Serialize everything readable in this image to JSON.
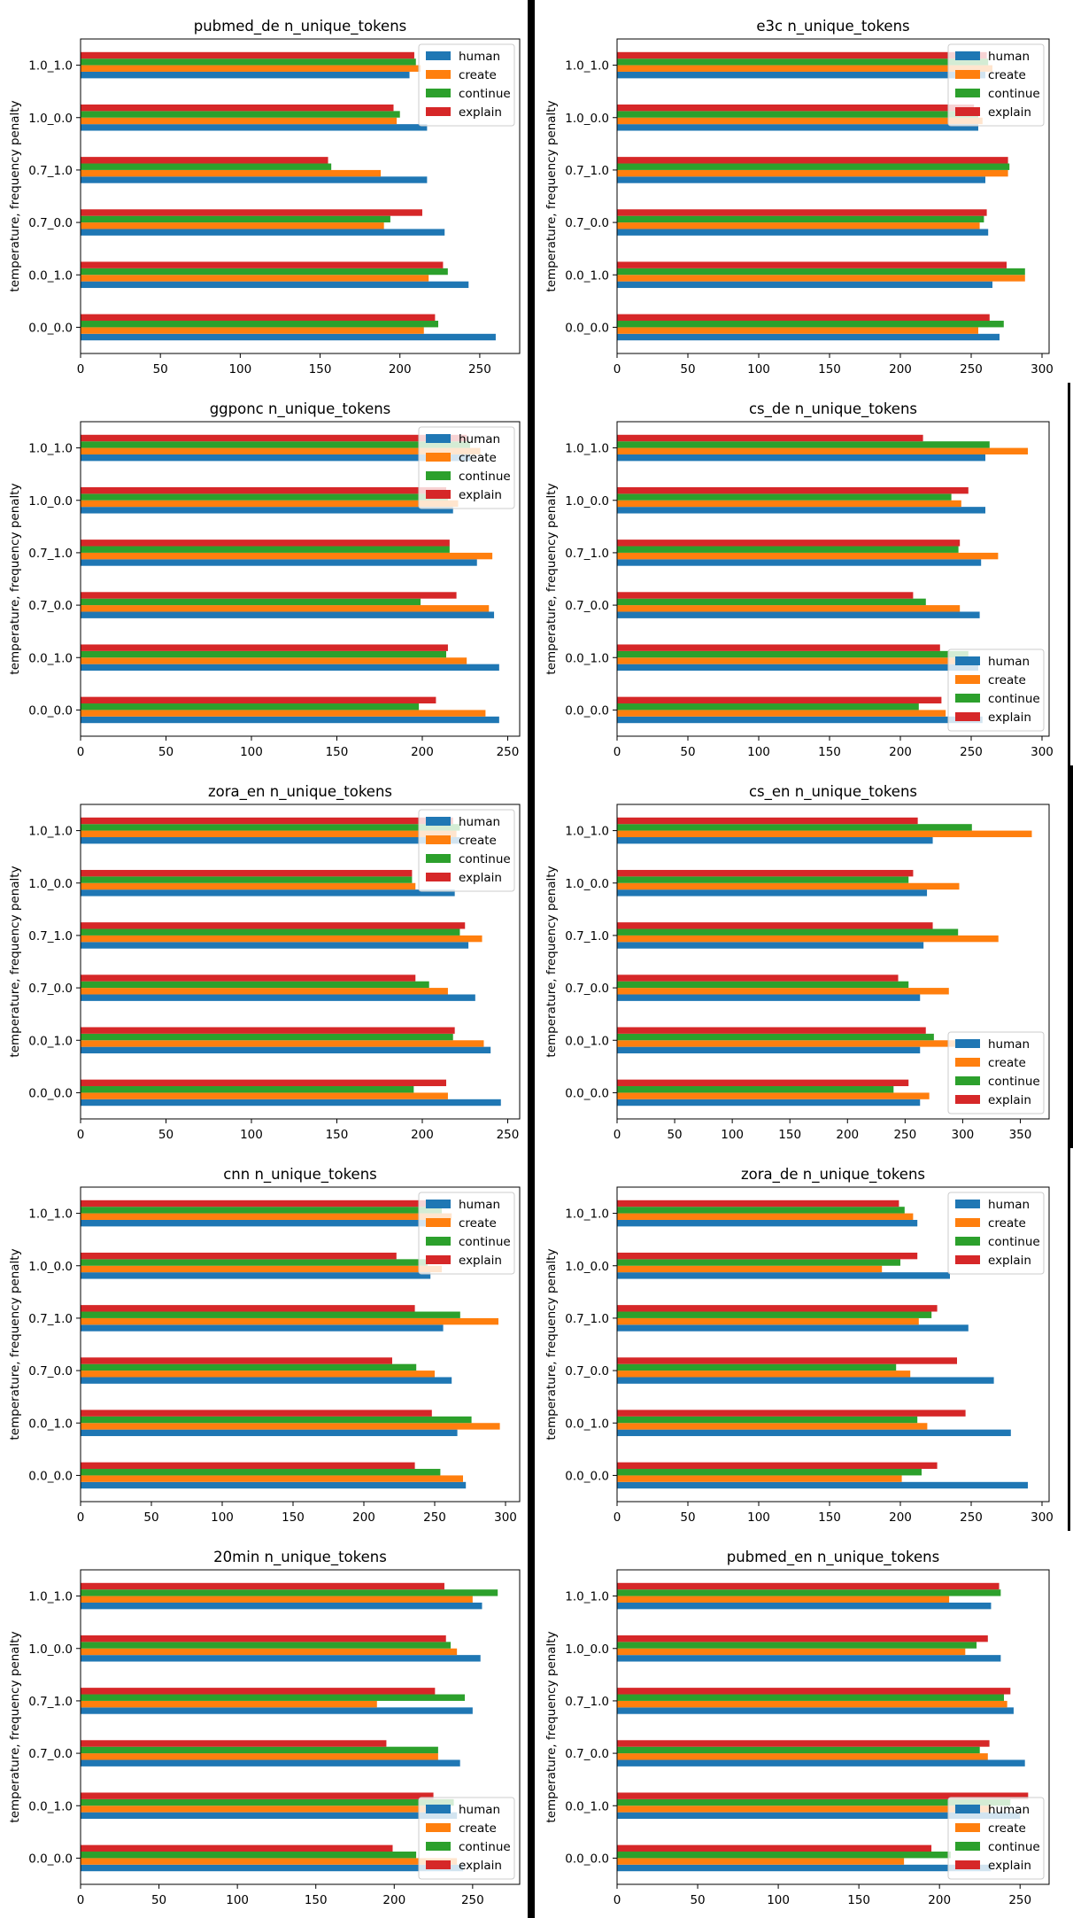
{
  "colors": {
    "human": "#1f77b4",
    "create": "#ff7f0e",
    "continue": "#2ca02c",
    "explain": "#d62728"
  },
  "chart_data": [
    {
      "type": "bar",
      "orientation": "horizontal",
      "title": "pubmed_de n_unique_tokens",
      "ylabel": "temperature, frequency penalty",
      "xlabel": "",
      "categories": [
        "0.0_0.0",
        "0.0_1.0",
        "0.7_0.0",
        "0.7_1.0",
        "1.0_0.0",
        "1.0_1.0"
      ],
      "xlim": [
        0,
        275
      ],
      "xticks": [
        0,
        50,
        100,
        150,
        200,
        250
      ],
      "legend": "upper right",
      "series": [
        {
          "name": "human",
          "values": [
            260,
            243,
            228,
            217,
            217,
            206
          ]
        },
        {
          "name": "create",
          "values": [
            215,
            218,
            190,
            188,
            198,
            213
          ]
        },
        {
          "name": "continue",
          "values": [
            224,
            230,
            194,
            157,
            200,
            210
          ]
        },
        {
          "name": "explain",
          "values": [
            222,
            227,
            214,
            155,
            196,
            209
          ]
        }
      ]
    },
    {
      "type": "bar",
      "orientation": "horizontal",
      "title": "e3c n_unique_tokens",
      "ylabel": "temperature, frequency penalty",
      "xlabel": "",
      "categories": [
        "0.0_0.0",
        "0.0_1.0",
        "0.7_0.0",
        "0.7_1.0",
        "1.0_0.0",
        "1.0_1.0"
      ],
      "xlim": [
        0,
        305
      ],
      "xticks": [
        0,
        50,
        100,
        150,
        200,
        250,
        300
      ],
      "legend": "upper right",
      "series": [
        {
          "name": "human",
          "values": [
            270,
            265,
            262,
            260,
            255,
            260
          ]
        },
        {
          "name": "create",
          "values": [
            255,
            288,
            256,
            276,
            258,
            265
          ]
        },
        {
          "name": "continue",
          "values": [
            273,
            288,
            259,
            277,
            255,
            262
          ]
        },
        {
          "name": "explain",
          "values": [
            263,
            275,
            261,
            276,
            252,
            261
          ]
        }
      ]
    },
    {
      "type": "bar",
      "orientation": "horizontal",
      "title": "ggponc n_unique_tokens",
      "ylabel": "temperature, frequency penalty",
      "xlabel": "",
      "categories": [
        "0.0_0.0",
        "0.0_1.0",
        "0.7_0.0",
        "0.7_1.0",
        "1.0_0.0",
        "1.0_1.0"
      ],
      "xlim": [
        0,
        257
      ],
      "xticks": [
        0,
        50,
        100,
        150,
        200,
        250
      ],
      "legend": "upper right",
      "series": [
        {
          "name": "human",
          "values": [
            245,
            245,
            242,
            232,
            218,
            228
          ]
        },
        {
          "name": "create",
          "values": [
            237,
            226,
            239,
            241,
            221,
            234
          ]
        },
        {
          "name": "continue",
          "values": [
            198,
            214,
            199,
            216,
            215,
            228
          ]
        },
        {
          "name": "explain",
          "values": [
            208,
            215,
            220,
            216,
            214,
            226
          ]
        }
      ]
    },
    {
      "type": "bar",
      "orientation": "horizontal",
      "title": "cs_de n_unique_tokens",
      "ylabel": "temperature, frequency penalty",
      "xlabel": "",
      "categories": [
        "0.0_0.0",
        "0.0_1.0",
        "0.7_0.0",
        "0.7_1.0",
        "1.0_0.0",
        "1.0_1.0"
      ],
      "xlim": [
        0,
        305
      ],
      "xticks": [
        0,
        50,
        100,
        150,
        200,
        250,
        300
      ],
      "legend": "lower right",
      "series": [
        {
          "name": "human",
          "values": [
            258,
            255,
            256,
            257,
            260,
            260
          ]
        },
        {
          "name": "create",
          "values": [
            232,
            252,
            242,
            269,
            243,
            290
          ]
        },
        {
          "name": "continue",
          "values": [
            213,
            248,
            218,
            241,
            236,
            263
          ]
        },
        {
          "name": "explain",
          "values": [
            229,
            228,
            209,
            242,
            248,
            216
          ]
        }
      ]
    },
    {
      "type": "bar",
      "orientation": "horizontal",
      "title": "zora_en n_unique_tokens",
      "ylabel": "temperature, frequency penalty",
      "xlabel": "",
      "categories": [
        "0.0_0.0",
        "0.0_1.0",
        "0.7_0.0",
        "0.7_1.0",
        "1.0_0.0",
        "1.0_1.0"
      ],
      "xlim": [
        0,
        257
      ],
      "xticks": [
        0,
        50,
        100,
        150,
        200,
        250
      ],
      "legend": "upper right",
      "series": [
        {
          "name": "human",
          "values": [
            246,
            240,
            231,
            227,
            219,
            222
          ]
        },
        {
          "name": "create",
          "values": [
            215,
            236,
            215,
            235,
            196,
            220
          ]
        },
        {
          "name": "continue",
          "values": [
            195,
            218,
            204,
            222,
            194,
            222
          ]
        },
        {
          "name": "explain",
          "values": [
            214,
            219,
            196,
            225,
            194,
            218
          ]
        }
      ]
    },
    {
      "type": "bar",
      "orientation": "horizontal",
      "title": "cs_en n_unique_tokens",
      "ylabel": "temperature, frequency penalty",
      "xlabel": "",
      "categories": [
        "0.0_0.0",
        "0.0_1.0",
        "0.7_0.0",
        "0.7_1.0",
        "1.0_0.0",
        "1.0_1.0"
      ],
      "xlim": [
        0,
        375
      ],
      "xticks": [
        0,
        50,
        100,
        150,
        200,
        250,
        300,
        350
      ],
      "legend": "lower right",
      "series": [
        {
          "name": "human",
          "values": [
            263,
            263,
            263,
            266,
            269,
            274
          ]
        },
        {
          "name": "create",
          "values": [
            271,
            300,
            288,
            331,
            297,
            360
          ]
        },
        {
          "name": "continue",
          "values": [
            240,
            275,
            253,
            296,
            253,
            308
          ]
        },
        {
          "name": "explain",
          "values": [
            253,
            268,
            244,
            274,
            257,
            261
          ]
        }
      ]
    },
    {
      "type": "bar",
      "orientation": "horizontal",
      "title": "cnn n_unique_tokens",
      "ylabel": "temperature, frequency penalty",
      "xlabel": "",
      "categories": [
        "0.0_0.0",
        "0.0_1.0",
        "0.7_0.0",
        "0.7_1.0",
        "1.0_0.0",
        "1.0_1.0"
      ],
      "xlim": [
        0,
        310
      ],
      "xticks": [
        0,
        50,
        100,
        150,
        200,
        250,
        300
      ],
      "legend": "upper right",
      "series": [
        {
          "name": "human",
          "values": [
            272,
            266,
            262,
            256,
            247,
            258
          ]
        },
        {
          "name": "create",
          "values": [
            270,
            296,
            250,
            295,
            255,
            262
          ]
        },
        {
          "name": "continue",
          "values": [
            254,
            276,
            237,
            268,
            245,
            255
          ]
        },
        {
          "name": "explain",
          "values": [
            236,
            248,
            220,
            236,
            223,
            245
          ]
        }
      ]
    },
    {
      "type": "bar",
      "orientation": "horizontal",
      "title": "zora_de n_unique_tokens",
      "ylabel": "temperature, frequency penalty",
      "xlabel": "",
      "categories": [
        "0.0_0.0",
        "0.0_1.0",
        "0.7_0.0",
        "0.7_1.0",
        "1.0_0.0",
        "1.0_1.0"
      ],
      "xlim": [
        0,
        305
      ],
      "xticks": [
        0,
        50,
        100,
        150,
        200,
        250,
        300
      ],
      "legend": "upper right",
      "series": [
        {
          "name": "human",
          "values": [
            290,
            278,
            266,
            248,
            235,
            212
          ]
        },
        {
          "name": "create",
          "values": [
            201,
            219,
            207,
            213,
            187,
            209
          ]
        },
        {
          "name": "continue",
          "values": [
            215,
            212,
            197,
            222,
            200,
            203
          ]
        },
        {
          "name": "explain",
          "values": [
            226,
            246,
            240,
            226,
            212,
            199
          ]
        }
      ]
    },
    {
      "type": "bar",
      "orientation": "horizontal",
      "title": "20min n_unique_tokens",
      "ylabel": "temperature, frequency penalty",
      "xlabel": "",
      "categories": [
        "0.0_0.0",
        "0.0_1.0",
        "0.7_0.0",
        "0.7_1.0",
        "1.0_0.0",
        "1.0_1.0"
      ],
      "xlim": [
        0,
        280
      ],
      "xticks": [
        0,
        50,
        100,
        150,
        200,
        250
      ],
      "legend": "lower right",
      "series": [
        {
          "name": "human",
          "values": [
            244,
            240,
            242,
            250,
            255,
            256
          ]
        },
        {
          "name": "create",
          "values": [
            240,
            236,
            228,
            189,
            240,
            250
          ]
        },
        {
          "name": "continue",
          "values": [
            214,
            238,
            228,
            245,
            236,
            266
          ]
        },
        {
          "name": "explain",
          "values": [
            199,
            225,
            195,
            226,
            233,
            232
          ]
        }
      ]
    },
    {
      "type": "bar",
      "orientation": "horizontal",
      "title": "pubmed_en n_unique_tokens",
      "ylabel": "temperature, frequency penalty",
      "xlabel": "",
      "categories": [
        "0.0_0.0",
        "0.0_1.0",
        "0.7_0.0",
        "0.7_1.0",
        "1.0_0.0",
        "1.0_1.0"
      ],
      "xlim": [
        0,
        268
      ],
      "xticks": [
        0,
        50,
        100,
        150,
        200,
        250
      ],
      "legend": "lower right",
      "series": [
        {
          "name": "human",
          "values": [
            232,
            250,
            253,
            246,
            238,
            232
          ]
        },
        {
          "name": "create",
          "values": [
            178,
            232,
            230,
            242,
            216,
            206
          ]
        },
        {
          "name": "continue",
          "values": [
            207,
            244,
            225,
            240,
            223,
            238
          ]
        },
        {
          "name": "explain",
          "values": [
            195,
            255,
            231,
            244,
            230,
            237
          ]
        }
      ]
    }
  ]
}
